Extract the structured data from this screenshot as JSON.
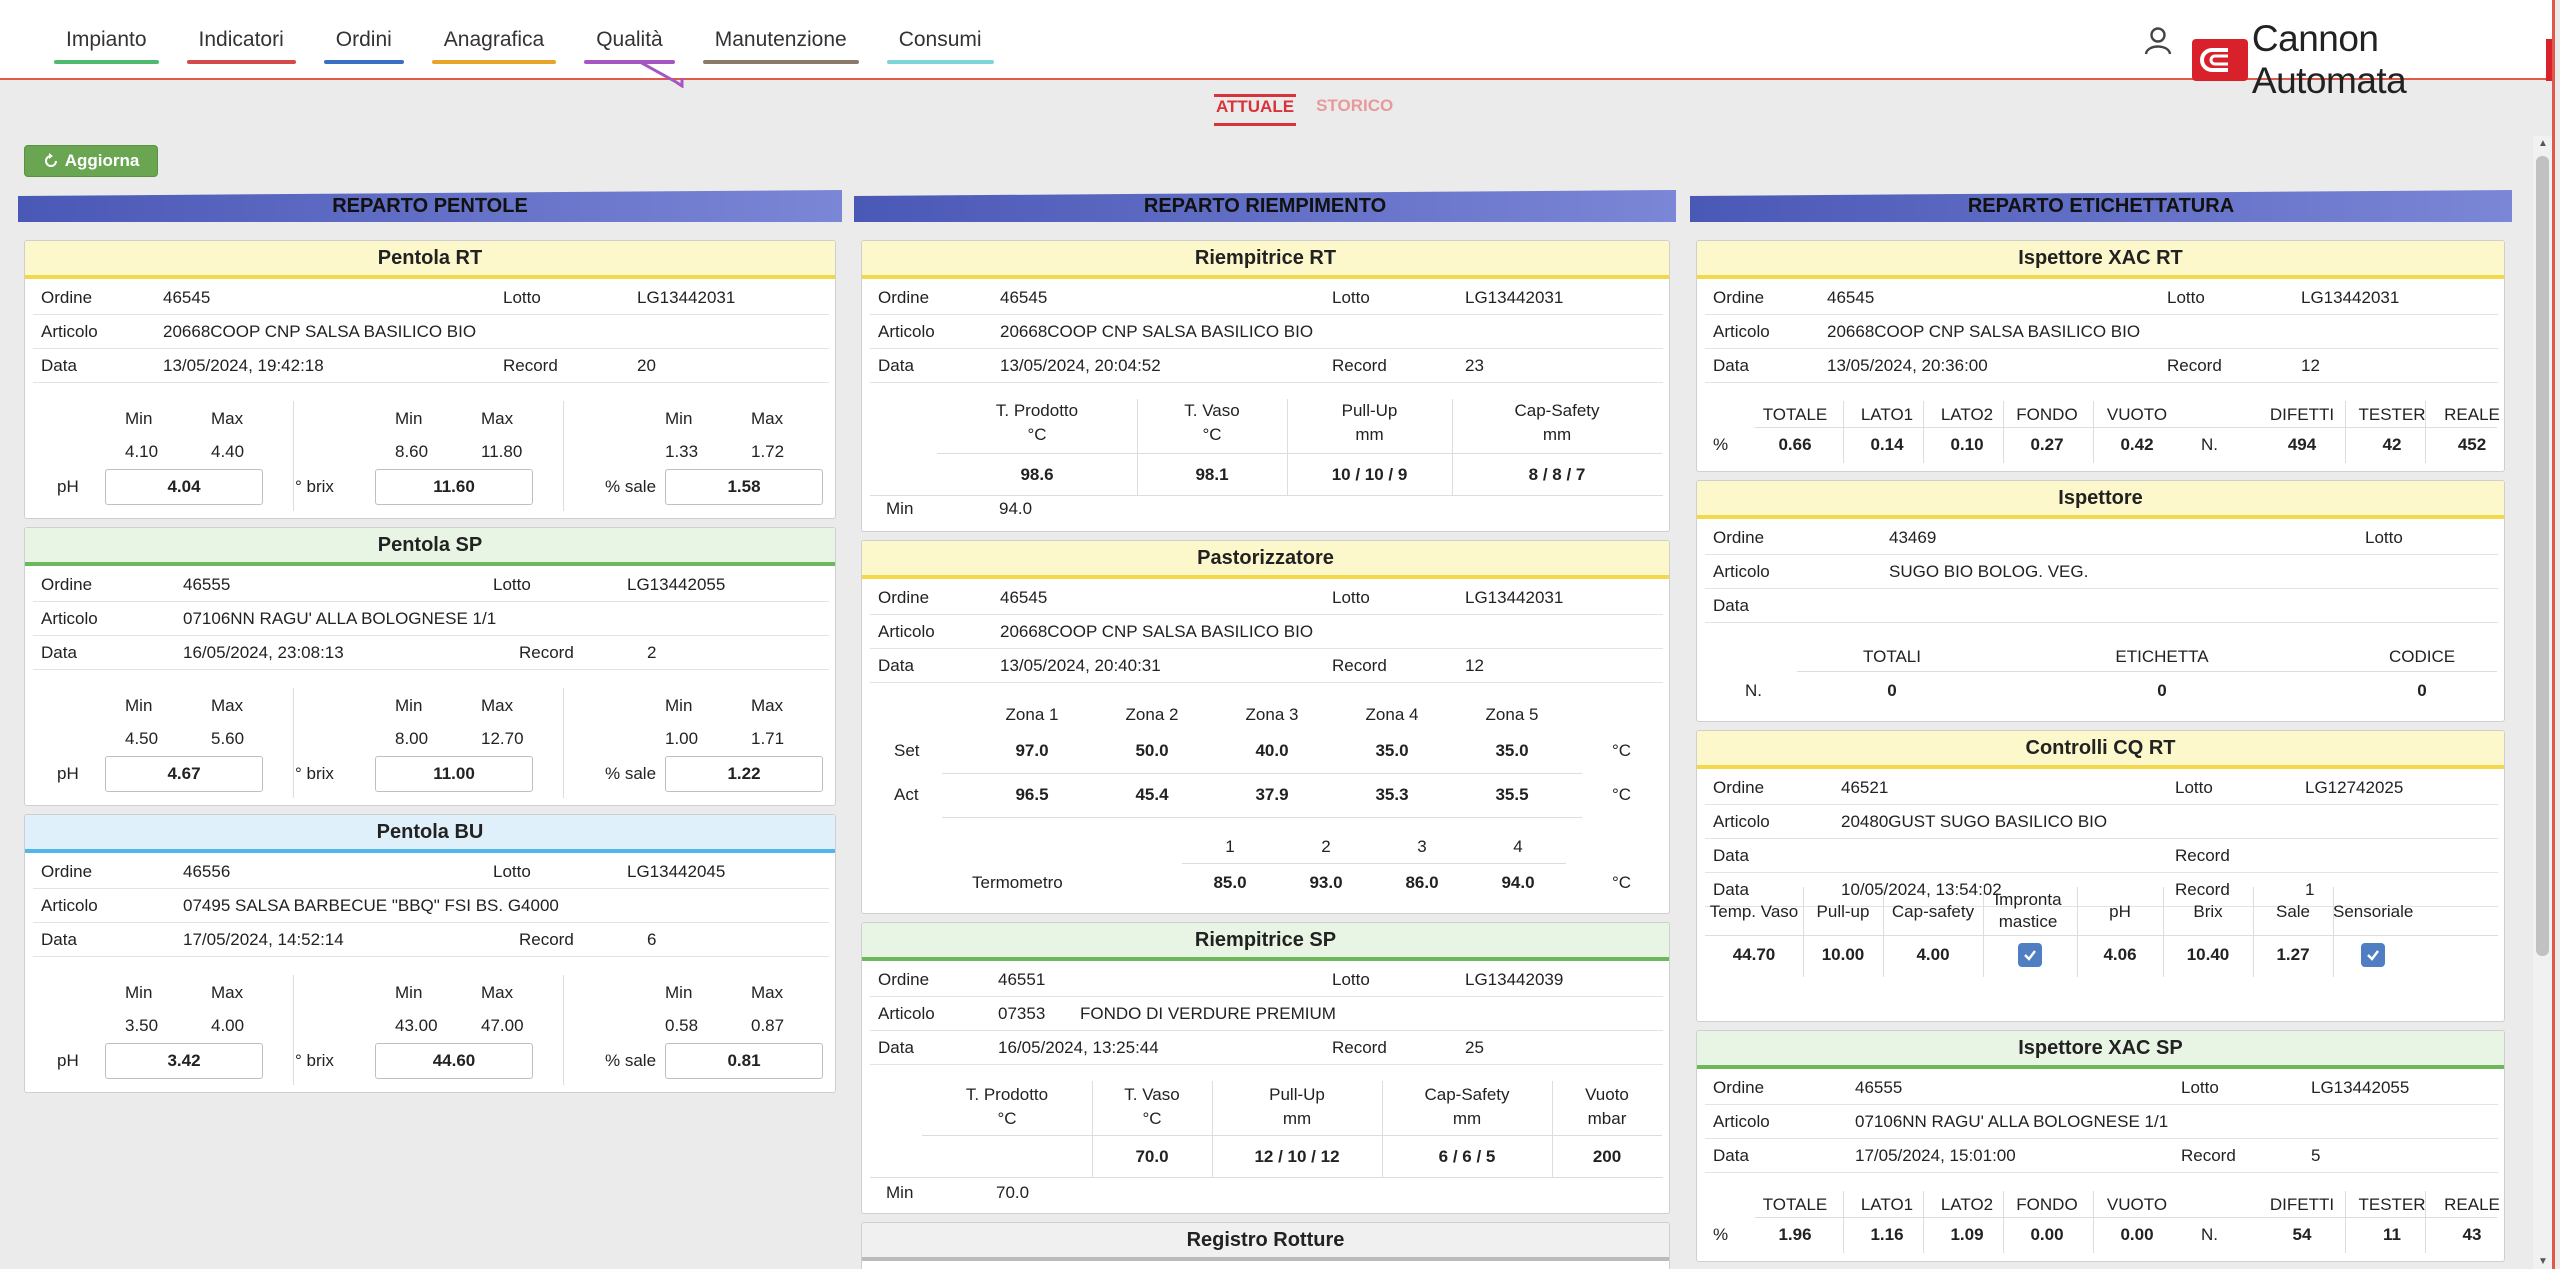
{
  "nav": [
    {
      "label": "Impianto",
      "color": "#4fba6f"
    },
    {
      "label": "Indicatori",
      "color": "#d44a4a"
    },
    {
      "label": "Ordini",
      "color": "#3a6fc4"
    },
    {
      "label": "Anagrafica",
      "color": "#e8a32a"
    },
    {
      "label": "Qualità",
      "color": "#a855c4"
    },
    {
      "label": "Manutenzione",
      "color": "#8a7a6a"
    },
    {
      "label": "Consumi",
      "color": "#7fd4d8"
    }
  ],
  "brand": {
    "name": "Cannon Automata",
    "color": "#d9212b"
  },
  "subtabs": {
    "active": "ATTUALE",
    "inactive": "STORICO"
  },
  "refresh_label": "Aggiorna",
  "labels": {
    "ordine": "Ordine",
    "lotto": "Lotto",
    "articolo": "Articolo",
    "data": "Data",
    "record": "Record",
    "min": "Min",
    "max": "Max",
    "ph": "pH",
    "brix": "° brix",
    "sale": "% sale",
    "set": "Set",
    "act": "Act",
    "termometro": "Termometro",
    "celsius": "°C",
    "pct": "%",
    "n": "N."
  },
  "pentole": {
    "title": "REPARTO PENTOLE",
    "panels": [
      {
        "title": "Pentola RT",
        "ordine": "46545",
        "lotto": "LG13442031",
        "articolo": "20668COOP CNP SALSA BASILICO BIO",
        "data": "13/05/2024, 19:42:18",
        "record": "20",
        "ph": {
          "min": "4.10",
          "max": "4.40",
          "value": "4.04"
        },
        "brix": {
          "min": "8.60",
          "max": "11.80",
          "value": "11.60"
        },
        "sale": {
          "min": "1.33",
          "max": "1.72",
          "value": "1.58"
        }
      },
      {
        "title": "Pentola SP",
        "ordine": "46555",
        "lotto": "LG13442055",
        "articolo": "07106NN RAGU' ALLA BOLOGNESE 1/1",
        "data": "16/05/2024, 23:08:13",
        "record": "2",
        "ph": {
          "min": "4.50",
          "max": "5.60",
          "value": "4.67"
        },
        "brix": {
          "min": "8.00",
          "max": "12.70",
          "value": "11.00"
        },
        "sale": {
          "min": "1.00",
          "max": "1.71",
          "value": "1.22"
        }
      },
      {
        "title": "Pentola BU",
        "ordine": "46556",
        "lotto": "LG13442045",
        "articolo": "07495 SALSA BARBECUE \"BBQ\" FSI BS. G4000",
        "data": "17/05/2024, 14:52:14",
        "record": "6",
        "ph": {
          "min": "3.50",
          "max": "4.00",
          "value": "3.42"
        },
        "brix": {
          "min": "43.00",
          "max": "47.00",
          "value": "44.60"
        },
        "sale": {
          "min": "0.58",
          "max": "0.87",
          "value": "0.81"
        }
      }
    ]
  },
  "riempimento": {
    "title": "REPARTO RIEMPIMENTO",
    "riempitrice_rt": {
      "title": "Riempitrice RT",
      "ordine": "46545",
      "lotto": "LG13442031",
      "articolo": "20668COOP CNP SALSA BASILICO BIO",
      "data": "13/05/2024, 20:04:52",
      "record": "23",
      "headers": [
        [
          "T. Prodotto",
          "°C"
        ],
        [
          "T. Vaso",
          "°C"
        ],
        [
          "Pull-Up",
          "mm"
        ],
        [
          "Cap-Safety",
          "mm"
        ]
      ],
      "values": [
        "98.6",
        "98.1",
        "10 / 10 / 9",
        "8 / 8 / 7"
      ],
      "min": "94.0"
    },
    "pastorizzatore": {
      "title": "Pastorizzatore",
      "ordine": "46545",
      "lotto": "LG13442031",
      "articolo": "20668COOP CNP SALSA BASILICO BIO",
      "data": "13/05/2024, 20:40:31",
      "record": "12",
      "zones": [
        "Zona 1",
        "Zona 2",
        "Zona 3",
        "Zona 4",
        "Zona 5"
      ],
      "set": [
        "97.0",
        "50.0",
        "40.0",
        "35.0",
        "35.0"
      ],
      "act": [
        "96.5",
        "45.4",
        "37.9",
        "35.3",
        "35.5"
      ],
      "term_idx": [
        "1",
        "2",
        "3",
        "4"
      ],
      "term": [
        "85.0",
        "93.0",
        "86.0",
        "94.0"
      ]
    },
    "riempitrice_sp": {
      "title": "Riempitrice SP",
      "ordine": "46551",
      "lotto": "LG13442039",
      "articolo_code": "07353",
      "articolo": "FONDO DI VERDURE PREMIUM",
      "data": "16/05/2024, 13:25:44",
      "record": "25",
      "headers": [
        [
          "T. Prodotto",
          "°C"
        ],
        [
          "T. Vaso",
          "°C"
        ],
        [
          "Pull-Up",
          "mm"
        ],
        [
          "Cap-Safety",
          "mm"
        ],
        [
          "Vuoto",
          "mbar"
        ]
      ],
      "values": [
        "",
        "70.0",
        "12 / 10 / 12",
        "6 / 6 / 5",
        "200"
      ],
      "min": "70.0"
    },
    "registro": {
      "title": "Registro Rotture"
    }
  },
  "etichettatura": {
    "title": "REPARTO ETICHETTATURA",
    "xac_rt": {
      "title": "Ispettore XAC RT",
      "ordine": "46545",
      "lotto": "LG13442031",
      "articolo": "20668COOP CNP SALSA BASILICO BIO",
      "data": "13/05/2024, 20:36:00",
      "record": "12",
      "pct_headers": [
        "TOTALE",
        "LATO1",
        "LATO2",
        "FONDO",
        "VUOTO"
      ],
      "pct_values": [
        "0.66",
        "0.14",
        "0.10",
        "0.27",
        "0.42"
      ],
      "n_headers": [
        "DIFETTI",
        "TESTER",
        "REALE"
      ],
      "n_values": [
        "494",
        "42",
        "452"
      ]
    },
    "ispettore": {
      "title": "Ispettore",
      "ordine": "43469",
      "lotto": "",
      "articolo": "SUGO BIO BOLOG. VEG.",
      "data": "",
      "headers": [
        "TOTALI",
        "ETICHETTA",
        "CODICE"
      ],
      "values": [
        "0",
        "0",
        "0"
      ]
    },
    "cq_rt": {
      "title": "Controlli CQ RT",
      "ordine": "46521",
      "lotto": "LG12742025",
      "articolo": "20480GUST SUGO BASILICO BIO",
      "data1": "",
      "record1": "",
      "data2": "10/05/2024, 13:54:02",
      "record2": "1",
      "headers": [
        "Temp. Vaso",
        "Pull-up",
        "Cap-safety",
        "Impronta mastice",
        "pH",
        "Brix",
        "Sale",
        "Sensoriale"
      ],
      "values": [
        "44.70",
        "10.00",
        "4.00",
        "",
        "4.06",
        "10.40",
        "1.27",
        ""
      ]
    },
    "xac_sp": {
      "title": "Ispettore XAC SP",
      "ordine": "46555",
      "lotto": "LG13442055",
      "articolo": "07106NN RAGU' ALLA BOLOGNESE 1/1",
      "data": "17/05/2024, 15:01:00",
      "record": "5",
      "pct_headers": [
        "TOTALE",
        "LATO1",
        "LATO2",
        "FONDO",
        "VUOTO"
      ],
      "pct_values": [
        "1.96",
        "1.16",
        "1.09",
        "0.00",
        "0.00"
      ],
      "n_headers": [
        "DIFETTI",
        "TESTER",
        "REALE"
      ],
      "n_values": [
        "54",
        "11",
        "43"
      ]
    }
  }
}
